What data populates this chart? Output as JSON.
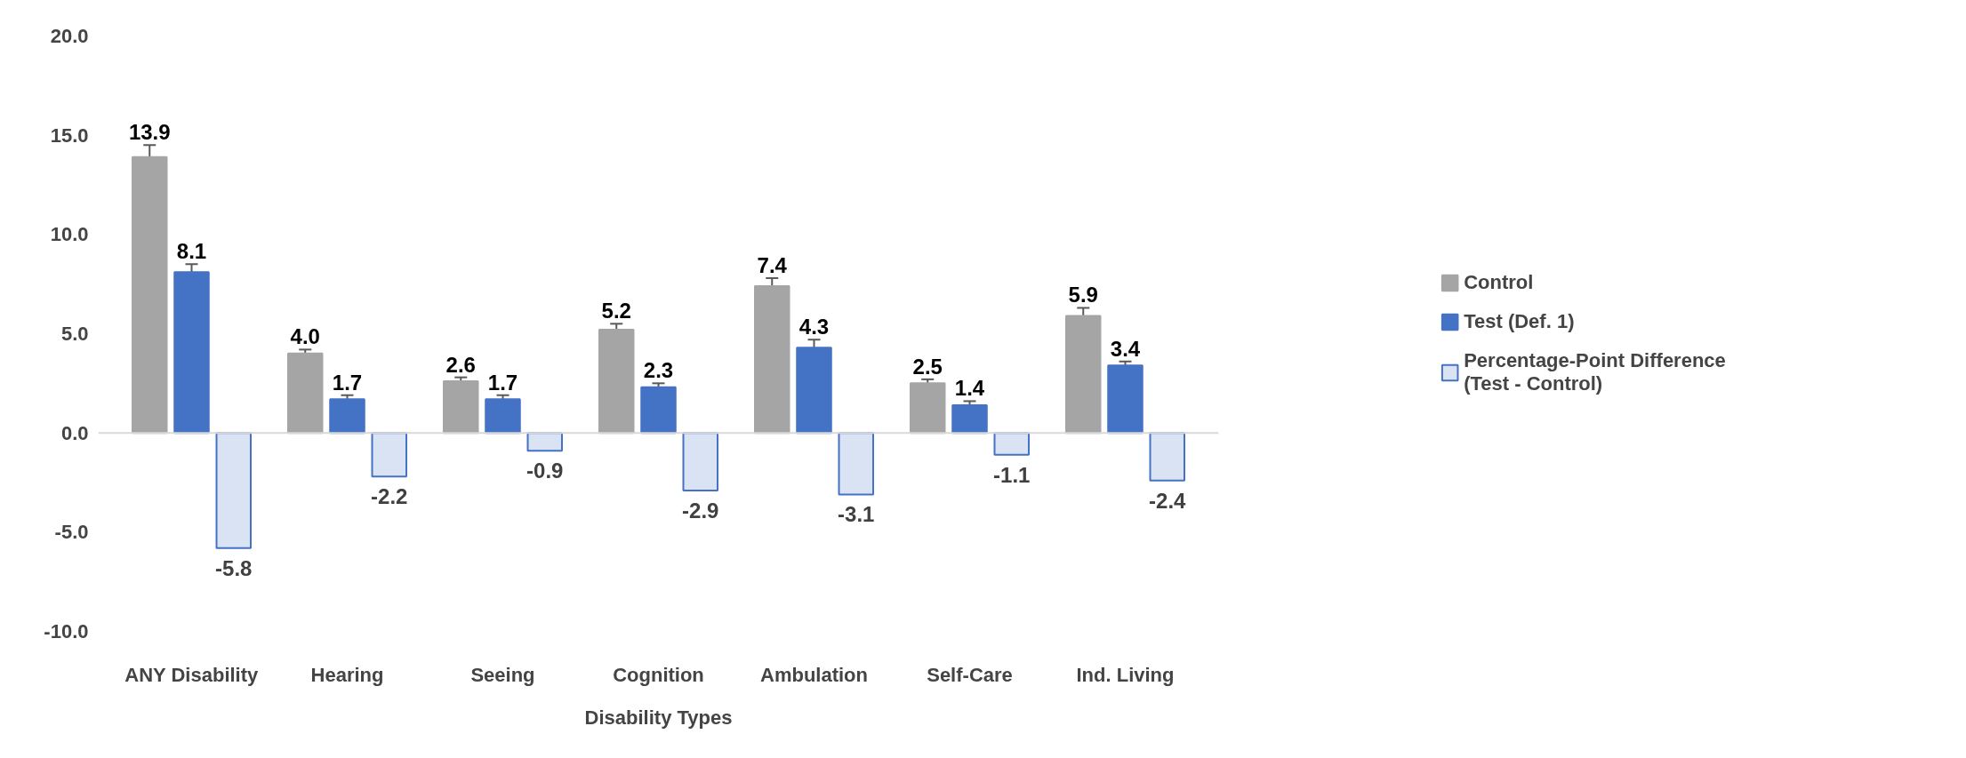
{
  "chart_data": {
    "type": "bar",
    "xlabel": "Disability Types",
    "categories": [
      "ANY Disability",
      "Hearing",
      "Seeing",
      "Cognition",
      "Ambulation",
      "Self-Care",
      "Ind. Living"
    ],
    "series": [
      {
        "name": "Control",
        "color": "#a5a5a5",
        "values": [
          13.9,
          4.0,
          2.6,
          5.2,
          7.4,
          2.5,
          5.9
        ],
        "errors": [
          0.6,
          0.2,
          0.2,
          0.3,
          0.4,
          0.2,
          0.4
        ],
        "value_labels": [
          "13.9",
          "4.0",
          "2.6",
          "5.2",
          "7.4",
          "2.5",
          "5.9"
        ]
      },
      {
        "name": "Test (Def. 1)",
        "color": "#4472c4",
        "values": [
          8.1,
          1.7,
          1.7,
          2.3,
          4.3,
          1.4,
          3.4
        ],
        "errors": [
          0.4,
          0.2,
          0.2,
          0.2,
          0.4,
          0.2,
          0.2
        ],
        "value_labels": [
          "8.1",
          "1.7",
          "1.7",
          "2.3",
          "4.3",
          "1.4",
          "3.4"
        ]
      },
      {
        "name": "Percentage-Point Difference\n(Test - Control)",
        "color": "#dae3f3",
        "values": [
          -5.8,
          -2.2,
          -0.9,
          -2.9,
          -3.1,
          -1.1,
          -2.4
        ],
        "value_labels": [
          "-5.8",
          "-2.2",
          "-0.9",
          "-2.9",
          "-3.1",
          "-1.1",
          "-2.4"
        ]
      }
    ],
    "ylim": [
      -10,
      20
    ],
    "yticks": [
      {
        "value": -10,
        "label": "-10.0"
      },
      {
        "value": -5,
        "label": "-5.0"
      },
      {
        "value": 0,
        "label": "0.0"
      },
      {
        "value": 5,
        "label": "5.0"
      },
      {
        "value": 10,
        "label": "10.0"
      },
      {
        "value": 15,
        "label": "15.0"
      },
      {
        "value": 20,
        "label": "20.0"
      }
    ],
    "legend": "right"
  }
}
